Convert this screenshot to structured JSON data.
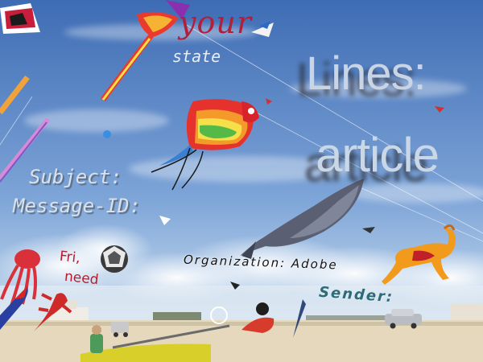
{
  "scene": {
    "overlay_text": {
      "your": "your",
      "state": "state",
      "lines": "Lines:",
      "article": "article",
      "subject": "Subject:",
      "message_id": "Message-ID:",
      "fri": "Fri,",
      "need": "need",
      "organization": "Organization: Adobe",
      "sender": "Sender:"
    },
    "colors": {
      "sky_top": "#3f6fb7",
      "sky_bottom": "#a9c6e6",
      "sand": "#e8dcc0",
      "rainbow": [
        "#e5322d",
        "#f39a2b",
        "#f5e04a",
        "#54b947",
        "#3b7fd0",
        "#6c3fa8"
      ],
      "whale": "#5a6072",
      "horse": "#f29a1c"
    },
    "icons": [
      "rainbow-kite-icon",
      "whale-kite-icon",
      "horse-kite-icon",
      "octopus-kite-icon",
      "ball-kite-icon"
    ]
  }
}
